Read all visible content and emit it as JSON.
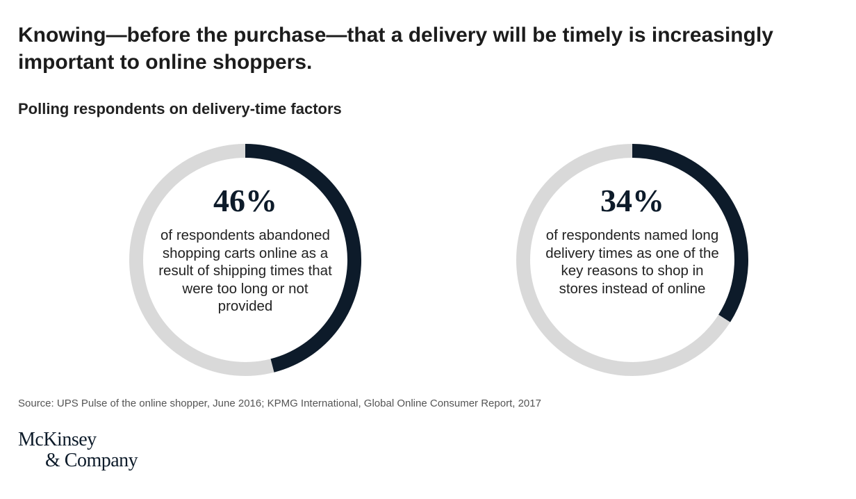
{
  "header": {
    "title": "Knowing—before the purchase—that a delivery will be timely is increasingly important to online shoppers.",
    "subtitle": "Polling respondents on delivery-time factors"
  },
  "chart_data": [
    {
      "type": "pie",
      "variant": "donut",
      "value": 46,
      "max": 100,
      "value_label": "46%",
      "description": "of respondents abandoned shopping carts online as a result of shipping times that were too long or not provided",
      "colors": {
        "fill": "#0d1b2a",
        "track": "#d9d9d9"
      }
    },
    {
      "type": "pie",
      "variant": "donut",
      "value": 34,
      "max": 100,
      "value_label": "34%",
      "description": "of respondents named long delivery times as one of the key reasons to shop in stores instead of online",
      "colors": {
        "fill": "#0d1b2a",
        "track": "#d9d9d9"
      }
    }
  ],
  "footer": {
    "source": "Source: UPS Pulse of the online shopper, June 2016; KPMG International, Global Online Consumer Report, 2017",
    "logo_line1": "McKinsey",
    "logo_line2": "& Company"
  }
}
